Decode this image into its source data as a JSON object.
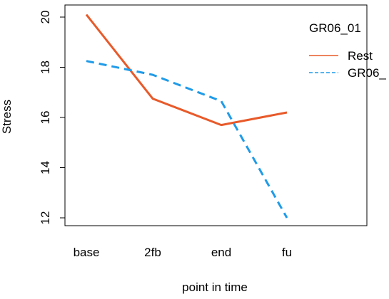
{
  "chart_data": {
    "type": "line",
    "title": "",
    "xlabel": "point in time",
    "ylabel": "Stress",
    "categories": [
      "base",
      "2fb",
      "end",
      "fu"
    ],
    "ylim": [
      11.7,
      20.3
    ],
    "yticks": [
      12,
      14,
      16,
      18,
      20
    ],
    "grid": false,
    "legend": {
      "title": "GR06_01",
      "position": "top-right"
    },
    "series": [
      {
        "name": "Rest",
        "color": "#E85A2A",
        "dash": "solid",
        "values": [
          20.1,
          16.75,
          15.7,
          16.2
        ]
      },
      {
        "name": "GR06_",
        "color": "#1F9BE8",
        "dash": "dashed",
        "values": [
          18.25,
          17.7,
          16.65,
          12.0
        ]
      }
    ]
  }
}
